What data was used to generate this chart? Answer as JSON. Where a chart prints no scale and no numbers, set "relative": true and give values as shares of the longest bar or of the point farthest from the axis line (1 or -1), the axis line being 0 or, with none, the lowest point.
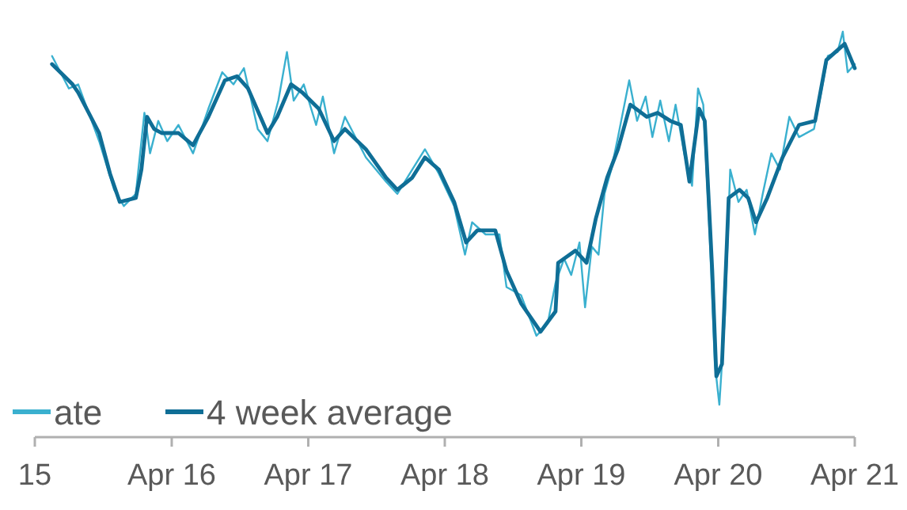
{
  "chart_data": {
    "type": "line",
    "relative": true,
    "legend": "bottom left",
    "grid": false,
    "xlim": [
      "2015-04-01",
      "2021-04-01"
    ],
    "xticks": [
      {
        "value": "2015-04-01",
        "label": "15"
      },
      {
        "value": "2016-04-01",
        "label": "Apr 16"
      },
      {
        "value": "2017-04-01",
        "label": "Apr 17"
      },
      {
        "value": "2018-04-01",
        "label": "Apr 18"
      },
      {
        "value": "2019-04-01",
        "label": "Apr 19"
      },
      {
        "value": "2020-04-01",
        "label": "Apr 20"
      },
      {
        "value": "2021-04-01",
        "label": "Apr 21"
      }
    ],
    "series": [
      {
        "name": "ate",
        "color": "#3ab0cf",
        "x": [
          "2015-05-17",
          "2015-07-01",
          "2015-07-26",
          "2015-09-20",
          "2015-10-30",
          "2015-11-25",
          "2015-12-27",
          "2016-01-19",
          "2016-02-03",
          "2016-02-25",
          "2016-03-20",
          "2016-04-19",
          "2016-05-28",
          "2016-07-08",
          "2016-08-14",
          "2016-09-13",
          "2016-10-11",
          "2016-11-17",
          "2016-12-13",
          "2017-01-11",
          "2017-02-03",
          "2017-02-21",
          "2017-03-20",
          "2017-04-22",
          "2017-05-10",
          "2017-06-09",
          "2017-07-08",
          "2017-09-02",
          "2017-10-26",
          "2017-11-25",
          "2018-01-04",
          "2018-02-07",
          "2018-03-16",
          "2018-04-26",
          "2018-05-25",
          "2018-06-13",
          "2018-07-19",
          "2018-08-25",
          "2018-09-13",
          "2018-10-22",
          "2018-12-02",
          "2019-01-01",
          "2019-01-22",
          "2019-02-14",
          "2019-03-05",
          "2019-03-27",
          "2019-04-11",
          "2019-04-29",
          "2019-05-17",
          "2019-06-02",
          "2019-06-20",
          "2019-07-08",
          "2019-08-07",
          "2019-08-28",
          "2019-09-20",
          "2019-10-08",
          "2019-10-29",
          "2019-11-21",
          "2019-12-09",
          "2020-01-01",
          "2020-01-22",
          "2020-02-07",
          "2020-02-21",
          "2020-03-09",
          "2020-03-23",
          "2020-04-04",
          "2020-04-19",
          "2020-05-03",
          "2020-05-25",
          "2020-06-16",
          "2020-07-08",
          "2020-07-29",
          "2020-08-21",
          "2020-09-13",
          "2020-10-08",
          "2020-11-03",
          "2020-12-13",
          "2021-01-01",
          "2021-01-19",
          "2021-02-14",
          "2021-02-28",
          "2021-03-13",
          "2021-04-01"
        ],
        "values": [
          0.94,
          0.86,
          0.87,
          0.73,
          0.61,
          0.57,
          0.6,
          0.8,
          0.7,
          0.78,
          0.73,
          0.77,
          0.7,
          0.81,
          0.9,
          0.87,
          0.91,
          0.76,
          0.73,
          0.83,
          0.95,
          0.83,
          0.87,
          0.77,
          0.84,
          0.7,
          0.79,
          0.69,
          0.63,
          0.6,
          0.66,
          0.71,
          0.65,
          0.57,
          0.45,
          0.53,
          0.5,
          0.5,
          0.37,
          0.35,
          0.25,
          0.28,
          0.38,
          0.44,
          0.4,
          0.48,
          0.32,
          0.47,
          0.45,
          0.6,
          0.66,
          0.74,
          0.88,
          0.78,
          0.84,
          0.74,
          0.83,
          0.73,
          0.82,
          0.7,
          0.62,
          0.86,
          0.82,
          0.5,
          0.18,
          0.08,
          0.3,
          0.66,
          0.58,
          0.61,
          0.5,
          0.6,
          0.7,
          0.66,
          0.79,
          0.74,
          0.76,
          0.85,
          0.94,
          0.95,
          1.0,
          0.9,
          0.92
        ]
      },
      {
        "name": "4 week average",
        "color": "#0f6e96",
        "x": [
          "2015-05-17",
          "2015-07-11",
          "2015-07-26",
          "2015-09-20",
          "2015-10-19",
          "2015-11-14",
          "2015-12-27",
          "2016-01-11",
          "2016-01-26",
          "2016-02-14",
          "2016-03-05",
          "2016-04-19",
          "2016-05-28",
          "2016-07-08",
          "2016-08-21",
          "2016-09-23",
          "2016-10-22",
          "2016-12-13",
          "2017-01-08",
          "2017-02-14",
          "2017-03-16",
          "2017-04-29",
          "2017-06-09",
          "2017-07-08",
          "2017-09-02",
          "2017-10-26",
          "2017-11-25",
          "2018-01-04",
          "2018-02-07",
          "2018-03-16",
          "2018-04-26",
          "2018-05-28",
          "2018-06-27",
          "2018-08-14",
          "2018-09-13",
          "2018-10-22",
          "2018-12-13",
          "2019-01-22",
          "2019-01-29",
          "2019-03-16",
          "2019-04-15",
          "2019-05-10",
          "2019-06-09",
          "2019-07-08",
          "2019-08-10",
          "2019-09-23",
          "2019-10-22",
          "2019-11-25",
          "2019-12-23",
          "2020-01-15",
          "2020-02-10",
          "2020-02-25",
          "2020-03-16",
          "2020-03-27",
          "2020-04-11",
          "2020-04-29",
          "2020-05-28",
          "2020-06-20",
          "2020-07-11",
          "2020-08-10",
          "2020-09-20",
          "2020-11-03",
          "2020-12-16",
          "2021-01-15",
          "2021-03-05",
          "2021-04-01"
        ],
        "values": [
          0.92,
          0.87,
          0.85,
          0.75,
          0.65,
          0.58,
          0.59,
          0.66,
          0.79,
          0.76,
          0.75,
          0.75,
          0.72,
          0.79,
          0.88,
          0.89,
          0.86,
          0.75,
          0.79,
          0.87,
          0.85,
          0.81,
          0.73,
          0.76,
          0.71,
          0.64,
          0.61,
          0.64,
          0.69,
          0.66,
          0.58,
          0.48,
          0.51,
          0.51,
          0.41,
          0.33,
          0.26,
          0.31,
          0.43,
          0.46,
          0.43,
          0.54,
          0.64,
          0.71,
          0.82,
          0.79,
          0.8,
          0.78,
          0.77,
          0.63,
          0.81,
          0.78,
          0.41,
          0.15,
          0.18,
          0.59,
          0.61,
          0.59,
          0.53,
          0.59,
          0.69,
          0.77,
          0.78,
          0.93,
          0.97,
          0.91
        ]
      }
    ]
  }
}
